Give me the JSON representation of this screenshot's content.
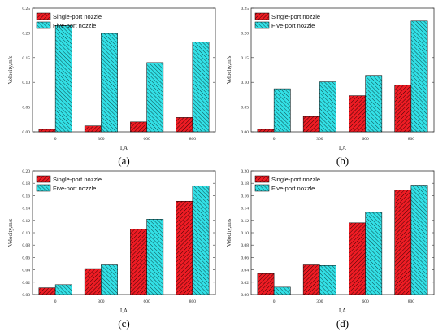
{
  "colors": {
    "single": "#ee1c24",
    "five": "#33e0e6",
    "frame": "#333333"
  },
  "chart_data": [
    {
      "type": "bar",
      "panel": "(a)",
      "categories": [
        "0",
        "300",
        "600",
        "800"
      ],
      "xlabel": "I,A",
      "ylabel": "Velocity,m/s",
      "ylim": [
        0,
        0.25
      ],
      "yticks": [
        "0.00",
        "0.05",
        "0.10",
        "0.15",
        "0.20",
        "0.25"
      ],
      "legend_position": "top-left",
      "series": [
        {
          "name": "Single-port nozzle",
          "values": [
            0.005,
            0.012,
            0.02,
            0.029
          ]
        },
        {
          "name": "Five-port nozzle",
          "values": [
            0.215,
            0.199,
            0.14,
            0.182
          ]
        }
      ]
    },
    {
      "type": "bar",
      "panel": "(b)",
      "categories": [
        "0",
        "300",
        "600",
        "800"
      ],
      "xlabel": "I,A",
      "ylabel": "Velocity,m/s",
      "ylim": [
        0,
        0.25
      ],
      "yticks": [
        "0.00",
        "0.05",
        "0.10",
        "0.15",
        "0.20",
        "0.25"
      ],
      "legend_position": "top-left",
      "series": [
        {
          "name": "Single-port nozzle",
          "values": [
            0.005,
            0.031,
            0.073,
            0.095
          ]
        },
        {
          "name": "Five-port nozzle",
          "values": [
            0.087,
            0.101,
            0.114,
            0.224
          ]
        }
      ]
    },
    {
      "type": "bar",
      "panel": "(c)",
      "categories": [
        "0",
        "300",
        "600",
        "800"
      ],
      "xlabel": "I,A",
      "ylabel": "Velocity,m/s",
      "ylim": [
        0,
        0.2
      ],
      "yticks": [
        "0.00",
        "0.02",
        "0.04",
        "0.06",
        "0.08",
        "0.10",
        "0.12",
        "0.14",
        "0.16",
        "0.18",
        "0.20"
      ],
      "legend_position": "top-left",
      "series": [
        {
          "name": "Single-port nozzle",
          "values": [
            0.011,
            0.042,
            0.106,
            0.151
          ]
        },
        {
          "name": "Five-port nozzle",
          "values": [
            0.016,
            0.048,
            0.122,
            0.176
          ]
        }
      ]
    },
    {
      "type": "bar",
      "panel": "(d)",
      "categories": [
        "0",
        "300",
        "600",
        "800"
      ],
      "xlabel": "I,A",
      "ylabel": "Velocity,m/s",
      "ylim": [
        0,
        0.2
      ],
      "yticks": [
        "0.00",
        "0.02",
        "0.04",
        "0.06",
        "0.08",
        "0.10",
        "0.12",
        "0.14",
        "0.16",
        "0.18",
        "0.20"
      ],
      "legend_position": "top-left",
      "series": [
        {
          "name": "Single-port nozzle",
          "values": [
            0.034,
            0.048,
            0.116,
            0.169
          ]
        },
        {
          "name": "Five-port nozzle",
          "values": [
            0.012,
            0.047,
            0.133,
            0.177
          ]
        }
      ]
    }
  ]
}
